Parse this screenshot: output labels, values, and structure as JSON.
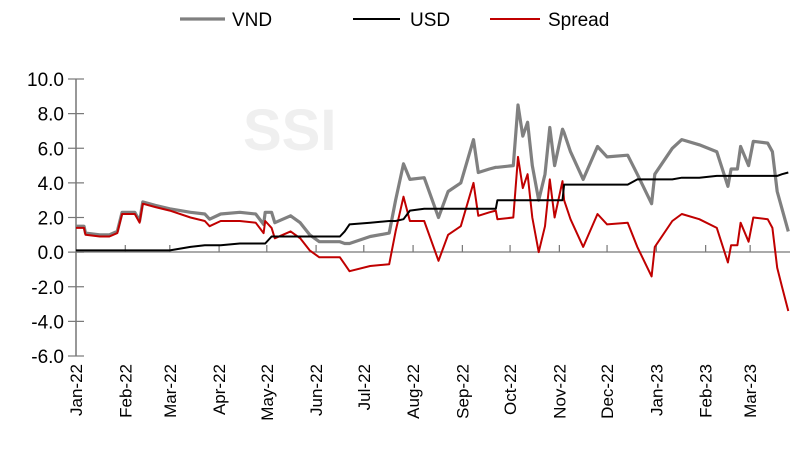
{
  "chart_data": {
    "type": "line",
    "title": "",
    "xlabel": "",
    "ylabel": "",
    "watermark": "SSI",
    "ylim": [
      -6,
      10
    ],
    "yticks": [
      "10.0",
      "8.0",
      "6.0",
      "4.0",
      "2.0",
      "0.0",
      "-2.0",
      "-4.0",
      "-6.0"
    ],
    "xticks": [
      "Jan-22",
      "Feb-22",
      "Mar-22",
      "Apr-22",
      "May-22",
      "Jun-22",
      "Jul-22",
      "Aug-22",
      "Sep-22",
      "Oct-22",
      "Nov-22",
      "Dec-22",
      "Jan-23",
      "Feb-23",
      "Mar-23"
    ],
    "xtick_dates": [
      "2022-01-01",
      "2022-02-01",
      "2022-03-01",
      "2022-04-01",
      "2022-05-01",
      "2022-06-01",
      "2022-07-01",
      "2022-08-01",
      "2022-09-01",
      "2022-10-01",
      "2022-11-01",
      "2022-12-01",
      "2023-01-01",
      "2023-02-01",
      "2023-03-01"
    ],
    "legend_position": "top",
    "grid": false,
    "x": [
      "2022-01-01",
      "2022-01-06",
      "2022-01-07",
      "2022-01-16",
      "2022-01-22",
      "2022-01-27",
      "2022-01-30",
      "2022-02-07",
      "2022-02-10",
      "2022-02-12",
      "2022-02-20",
      "2022-03-01",
      "2022-03-14",
      "2022-03-23",
      "2022-03-26",
      "2022-04-02",
      "2022-04-14",
      "2022-04-24",
      "2022-04-29",
      "2022-04-30",
      "2022-05-04",
      "2022-05-06",
      "2022-05-16",
      "2022-05-22",
      "2022-05-28",
      "2022-06-03",
      "2022-06-16",
      "2022-06-19",
      "2022-06-22",
      "2022-07-05",
      "2022-07-17",
      "2022-07-21",
      "2022-07-26",
      "2022-07-30",
      "2022-08-08",
      "2022-08-17",
      "2022-08-23",
      "2022-08-31",
      "2022-09-08",
      "2022-09-11",
      "2022-09-18",
      "2022-09-22",
      "2022-09-23",
      "2022-10-03",
      "2022-10-06",
      "2022-10-09",
      "2022-10-12",
      "2022-10-15",
      "2022-10-19",
      "2022-10-23",
      "2022-10-26",
      "2022-10-29",
      "2022-11-03",
      "2022-11-04",
      "2022-11-08",
      "2022-11-16",
      "2022-11-25",
      "2022-12-01",
      "2022-12-14",
      "2022-12-20",
      "2022-12-29",
      "2022-12-31",
      "2023-01-11",
      "2023-01-17",
      "2023-01-28",
      "2023-02-08",
      "2023-02-15",
      "2023-02-17",
      "2023-02-21",
      "2023-02-23",
      "2023-02-28",
      "2023-03-03",
      "2023-03-12",
      "2023-03-15",
      "2023-03-18",
      "2023-03-21",
      "2023-03-25"
    ],
    "series": [
      {
        "name": "VND",
        "color": "#808080",
        "values": [
          1.5,
          1.5,
          1.1,
          1.0,
          1.0,
          1.2,
          2.3,
          2.3,
          1.8,
          2.9,
          2.7,
          2.5,
          2.3,
          2.2,
          1.9,
          2.2,
          2.3,
          2.2,
          1.6,
          2.3,
          2.3,
          1.7,
          2.1,
          1.7,
          1.0,
          0.6,
          0.6,
          0.5,
          0.5,
          0.9,
          1.1,
          3.0,
          5.1,
          4.2,
          4.3,
          2.0,
          3.5,
          4.0,
          6.5,
          4.6,
          4.8,
          4.9,
          4.9,
          5.0,
          8.5,
          6.7,
          7.5,
          5.0,
          3.0,
          4.5,
          7.2,
          5.0,
          7.1,
          6.9,
          5.8,
          4.2,
          6.1,
          5.5,
          5.6,
          4.5,
          2.8,
          4.5,
          6.0,
          6.5,
          6.2,
          5.8,
          3.8,
          4.8,
          4.8,
          6.1,
          5.0,
          6.4,
          6.3,
          5.8,
          3.5,
          2.5,
          1.2
        ]
      },
      {
        "name": "USD",
        "color": "#000000",
        "values": [
          0.1,
          0.1,
          0.1,
          0.1,
          0.1,
          0.1,
          0.1,
          0.1,
          0.1,
          0.1,
          0.1,
          0.1,
          0.3,
          0.4,
          0.4,
          0.4,
          0.5,
          0.5,
          0.5,
          0.5,
          0.9,
          0.9,
          0.9,
          0.9,
          0.9,
          0.9,
          0.9,
          1.2,
          1.6,
          1.7,
          1.8,
          1.8,
          1.9,
          2.4,
          2.5,
          2.5,
          2.5,
          2.5,
          2.5,
          2.5,
          2.5,
          2.5,
          3.0,
          3.0,
          3.0,
          3.0,
          3.0,
          3.0,
          3.0,
          3.0,
          3.0,
          3.0,
          3.0,
          3.9,
          3.9,
          3.9,
          3.9,
          3.9,
          3.9,
          4.2,
          4.2,
          4.2,
          4.2,
          4.3,
          4.3,
          4.4,
          4.4,
          4.4,
          4.4,
          4.4,
          4.4,
          4.4,
          4.4,
          4.4,
          4.4,
          4.5,
          4.6
        ]
      },
      {
        "name": "Spread",
        "color": "#c00000",
        "values": [
          1.4,
          1.4,
          1.0,
          0.9,
          0.9,
          1.1,
          2.2,
          2.2,
          1.7,
          2.8,
          2.6,
          2.4,
          2.0,
          1.8,
          1.5,
          1.8,
          1.8,
          1.7,
          1.1,
          1.8,
          1.4,
          0.8,
          1.2,
          0.8,
          0.1,
          -0.3,
          -0.3,
          -0.7,
          -1.1,
          -0.8,
          -0.7,
          1.2,
          3.2,
          1.8,
          1.8,
          -0.5,
          1.0,
          1.5,
          4.0,
          2.1,
          2.3,
          2.4,
          1.9,
          2.0,
          5.5,
          3.7,
          4.5,
          2.0,
          0.0,
          1.5,
          4.2,
          2.0,
          4.1,
          3.0,
          1.9,
          0.3,
          2.2,
          1.6,
          1.7,
          0.3,
          -1.4,
          0.3,
          1.8,
          2.2,
          1.9,
          1.4,
          -0.6,
          0.4,
          0.4,
          1.7,
          0.6,
          2.0,
          1.9,
          1.4,
          -0.9,
          -2.0,
          -3.4
        ]
      }
    ]
  }
}
